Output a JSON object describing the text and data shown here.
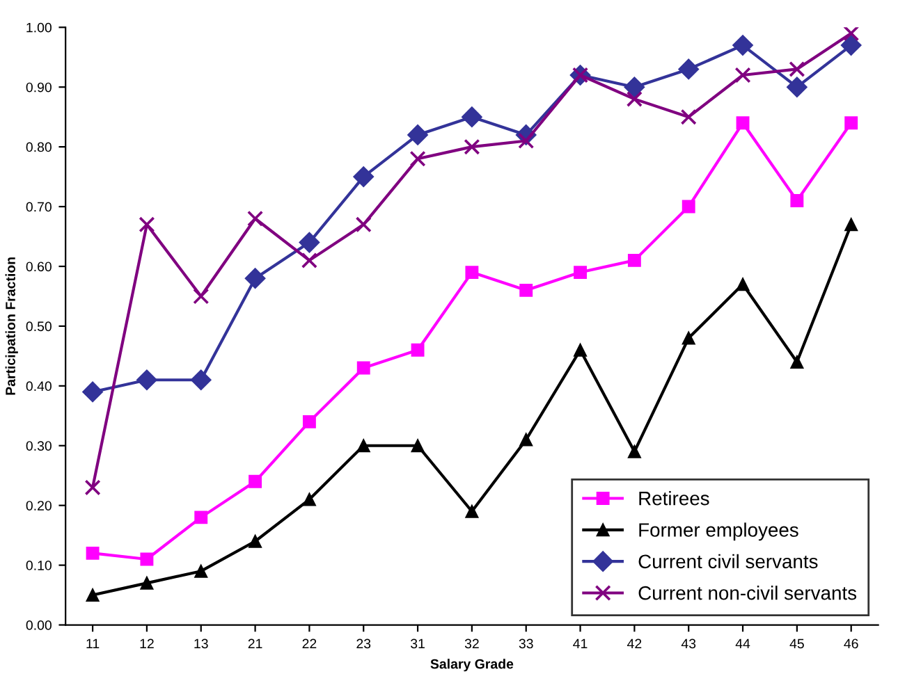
{
  "chart_data": {
    "type": "line",
    "xlabel": "Salary Grade",
    "ylabel": "Participation Fraction",
    "categories": [
      "11",
      "12",
      "13",
      "21",
      "22",
      "23",
      "31",
      "32",
      "33",
      "41",
      "42",
      "43",
      "44",
      "45",
      "46"
    ],
    "series": [
      {
        "name": "Retirees",
        "color": "#ff00ff",
        "marker": "square",
        "values": [
          0.12,
          0.11,
          0.18,
          0.24,
          0.34,
          0.43,
          0.46,
          0.59,
          0.56,
          0.59,
          0.61,
          0.7,
          0.84,
          0.71,
          0.84
        ]
      },
      {
        "name": "Former employees",
        "color": "#000000",
        "marker": "triangle",
        "values": [
          0.05,
          0.07,
          0.09,
          0.14,
          0.21,
          0.3,
          0.3,
          0.19,
          0.31,
          0.46,
          0.29,
          0.48,
          0.57,
          0.44,
          0.67
        ]
      },
      {
        "name": "Current civil servants",
        "color": "#333399",
        "marker": "diamond",
        "values": [
          0.39,
          0.41,
          0.41,
          0.58,
          0.64,
          0.75,
          0.82,
          0.85,
          0.82,
          0.92,
          0.9,
          0.93,
          0.97,
          0.9,
          0.97
        ]
      },
      {
        "name": "Current non-civil servants",
        "color": "#800080",
        "marker": "cross",
        "values": [
          0.23,
          0.67,
          0.55,
          0.68,
          0.61,
          0.67,
          0.78,
          0.8,
          0.81,
          0.92,
          0.88,
          0.85,
          0.92,
          0.93,
          0.99
        ]
      }
    ],
    "ylim": [
      0,
      1
    ],
    "yticks": [
      {
        "value": 0,
        "label": "0.00"
      },
      {
        "value": 0.1,
        "label": "0.10"
      },
      {
        "value": 0.2,
        "label": "0.20"
      },
      {
        "value": 0.3,
        "label": "0.30"
      },
      {
        "value": 0.4,
        "label": "0.40"
      },
      {
        "value": 0.5,
        "label": "0.50"
      },
      {
        "value": 0.6,
        "label": "0.60"
      },
      {
        "value": 0.7,
        "label": "0.70"
      },
      {
        "value": 0.8,
        "label": "0.80"
      },
      {
        "value": 0.9,
        "label": "0.90"
      },
      {
        "value": 1,
        "label": "1.00"
      }
    ],
    "grid": false,
    "legend": "bottom right",
    "line_style": "solid"
  }
}
